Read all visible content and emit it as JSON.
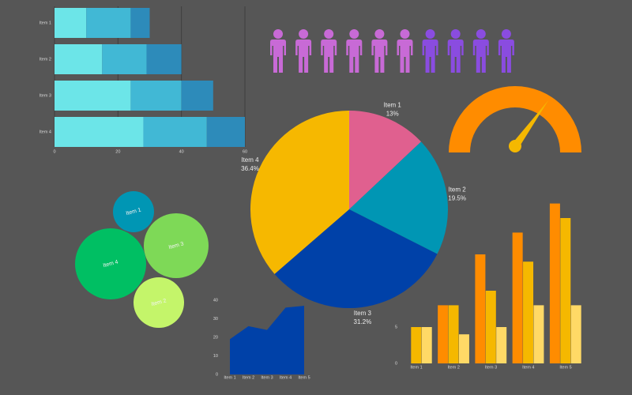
{
  "chart_data": [
    {
      "type": "bar",
      "orientation": "horizontal",
      "stacked": true,
      "categories": [
        "Item 1",
        "Item 2",
        "Item 3",
        "Item 4"
      ],
      "series": [
        {
          "color": "#6ce5e8",
          "values": [
            10,
            15,
            24,
            28
          ]
        },
        {
          "color": "#41b8d5",
          "values": [
            14,
            14,
            16,
            20
          ]
        },
        {
          "color": "#2d8bba",
          "values": [
            6,
            11,
            10,
            12
          ]
        }
      ],
      "xlim": [
        0,
        60
      ],
      "xticks": [
        0,
        20,
        40,
        60
      ],
      "grid": true
    },
    {
      "type": "pictogram",
      "values": [
        6,
        4
      ],
      "colors": [
        "#c86ad6",
        "#8a4ce0"
      ]
    },
    {
      "type": "gauge",
      "value": 70,
      "range": [
        0,
        100
      ],
      "color": "#ff8c00",
      "needle_color": "#f5b800"
    },
    {
      "type": "pie",
      "categories": [
        "Item 1",
        "Item 2",
        "Item 3",
        "Item 4"
      ],
      "values": [
        13,
        19.5,
        31.2,
        36.4
      ],
      "value_labels": [
        "13%",
        "19.5%",
        "31.2%",
        "36.4%"
      ],
      "colors": [
        "#e0608f",
        "#0096b4",
        "#0041a8",
        "#f6b800"
      ]
    },
    {
      "type": "bubble",
      "categories": [
        "Item 1",
        "Item 2",
        "Item 3",
        "Item 4"
      ],
      "values": [
        26,
        32,
        41,
        45
      ],
      "colors": [
        "#0096b4",
        "#c4f56a",
        "#7ed957",
        "#00bf63"
      ]
    },
    {
      "type": "area",
      "categories": [
        "Item 1",
        "Item 2",
        "Item 3",
        "Item 4",
        "Item 5"
      ],
      "values": [
        19,
        26,
        24,
        36,
        37
      ],
      "color": "#0041a8",
      "ylim": [
        0,
        40
      ],
      "yticks": [
        0,
        10,
        20,
        30,
        40
      ]
    },
    {
      "type": "bar",
      "orientation": "vertical",
      "stacked": false,
      "categories": [
        "Item 1",
        "Item 2",
        "Item 3",
        "Item 4",
        "Item 5"
      ],
      "series": [
        {
          "color": "#ff8c00",
          "values": [
            0,
            8,
            15,
            18,
            22
          ]
        },
        {
          "color": "#f5b800",
          "values": [
            5,
            8,
            10,
            14,
            20
          ]
        },
        {
          "color": "#ffd966",
          "values": [
            5,
            4,
            5,
            8,
            8
          ]
        }
      ],
      "ylim": [
        0,
        22
      ],
      "yticks": [
        0,
        5
      ],
      "grid": false
    }
  ]
}
